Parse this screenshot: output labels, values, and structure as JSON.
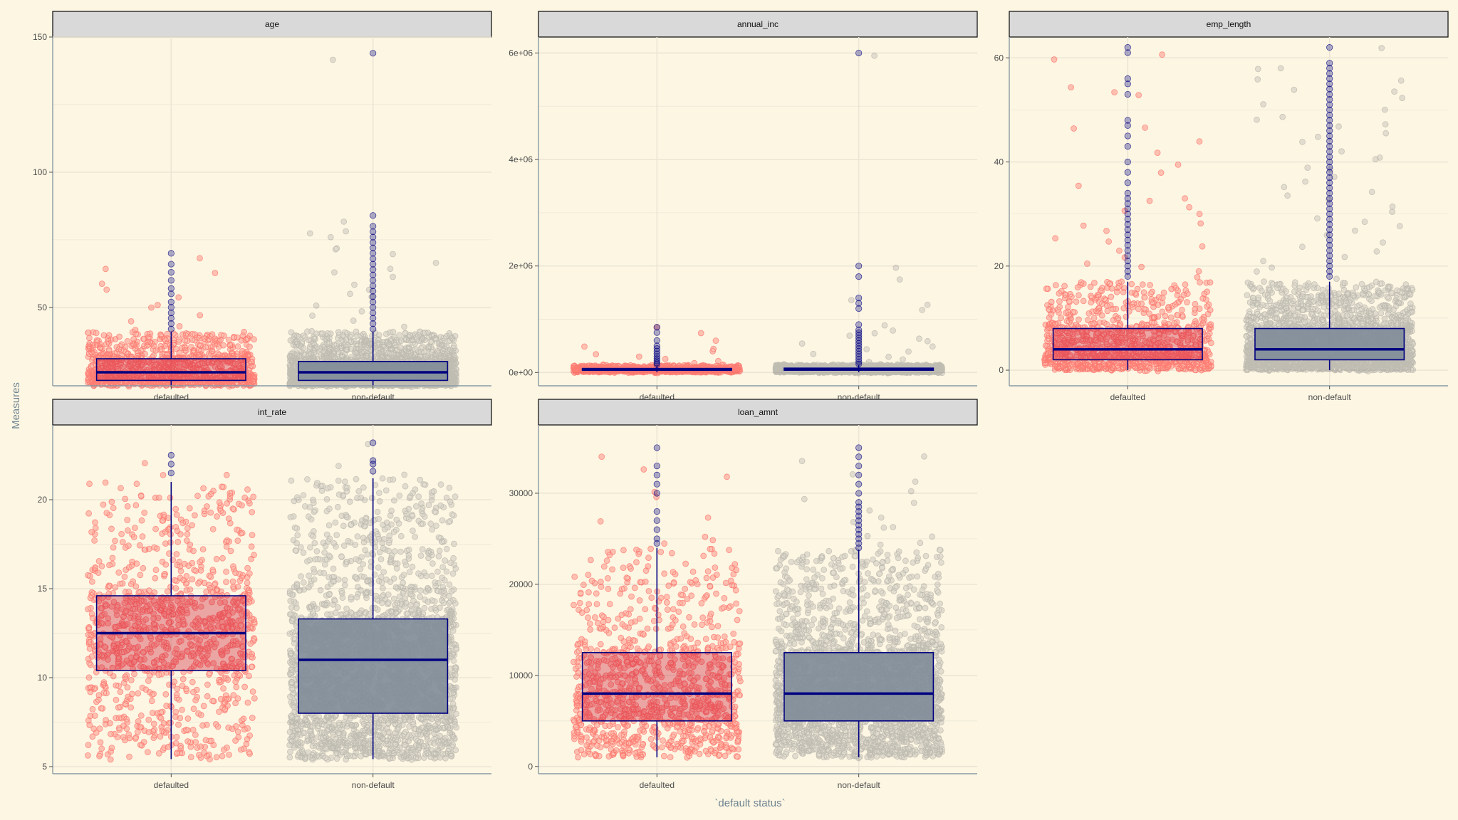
{
  "chart_data": {
    "type": "boxplot",
    "xlabel": "`default status`",
    "ylabel": "Measures",
    "categories": [
      "defaulted",
      "non-default"
    ],
    "colors": {
      "background": "#fdf6e3",
      "strip_fill": "#d9d9d9",
      "grid": "#ece5d5",
      "points_defaulted": "#ff0000",
      "points_non_default": "#808080",
      "box_fill_defaulted": "#c8102e",
      "box_fill_non_default": "#7f8c99",
      "box_line": "#000080",
      "outlier": "#000080",
      "axis_title": "#6e8491"
    },
    "facets": [
      {
        "name": "age",
        "ylim": [
          21,
          150
        ],
        "y_ticks": [
          50,
          100,
          150
        ],
        "y_tick_labels": [
          "50",
          "100",
          "150"
        ],
        "boxes": [
          {
            "group": "defaulted",
            "lower_whisker": 21,
            "q1": 23,
            "median": 26,
            "q3": 31,
            "upper_whisker": 41,
            "outliers": [
              42,
              44,
              46,
              48,
              50,
              52,
              55,
              57,
              60,
              63,
              66,
              70
            ]
          },
          {
            "group": "non-default",
            "lower_whisker": 21,
            "q1": 23,
            "median": 26,
            "q3": 30,
            "upper_whisker": 41,
            "outliers": [
              42,
              44,
              46,
              48,
              50,
              52,
              54,
              56,
              58,
              60,
              62,
              64,
              66,
              68,
              70,
              72,
              74,
              76,
              78,
              80,
              84,
              144
            ]
          }
        ]
      },
      {
        "name": "annual_inc",
        "ylim": [
          -250000,
          6300000
        ],
        "y_ticks": [
          0,
          2000000,
          4000000,
          6000000
        ],
        "y_tick_labels": [
          "0e+00",
          "2e+06",
          "4e+06",
          "6e+06"
        ],
        "boxes": [
          {
            "group": "defaulted",
            "lower_whisker": 4000,
            "q1": 40000,
            "median": 55000,
            "q3": 76000,
            "upper_whisker": 130000,
            "outliers": [
              150000,
              180000,
              220000,
              260000,
              300000,
              350000,
              400000,
              450000,
              500000,
              600000,
              750000,
              850000
            ]
          },
          {
            "group": "non-default",
            "lower_whisker": 4000,
            "q1": 42000,
            "median": 60000,
            "q3": 82000,
            "upper_whisker": 140000,
            "outliers": [
              160000,
              200000,
              250000,
              300000,
              350000,
              400000,
              450000,
              500000,
              550000,
              600000,
              650000,
              700000,
              750000,
              800000,
              900000,
              1200000,
              1300000,
              1400000,
              1800000,
              2000000,
              6000000
            ]
          }
        ]
      },
      {
        "name": "emp_length",
        "ylim": [
          -3,
          64
        ],
        "y_ticks": [
          0,
          20,
          40,
          60
        ],
        "y_tick_labels": [
          "0",
          "20",
          "40",
          "60"
        ],
        "boxes": [
          {
            "group": "defaulted",
            "lower_whisker": 0,
            "q1": 2,
            "median": 4,
            "q3": 8,
            "upper_whisker": 17,
            "outliers": [
              18,
              19,
              20,
              21,
              22,
              23,
              24,
              25,
              26,
              27,
              28,
              29,
              30,
              31,
              32,
              33,
              34,
              36,
              38,
              40,
              43,
              45,
              47,
              48,
              53,
              55,
              56,
              61,
              62
            ]
          },
          {
            "group": "non-default",
            "lower_whisker": 0,
            "q1": 2,
            "median": 4,
            "q3": 8,
            "upper_whisker": 17,
            "outliers": [
              18,
              19,
              20,
              21,
              22,
              23,
              24,
              25,
              26,
              27,
              28,
              29,
              30,
              31,
              32,
              33,
              34,
              35,
              36,
              37,
              38,
              39,
              40,
              41,
              42,
              43,
              44,
              45,
              46,
              47,
              48,
              49,
              50,
              51,
              52,
              53,
              54,
              55,
              56,
              57,
              58,
              59,
              62
            ]
          }
        ]
      },
      {
        "name": "int_rate",
        "ylim": [
          4.6,
          24.2
        ],
        "y_ticks": [
          5,
          10,
          15,
          20
        ],
        "y_tick_labels": [
          "5",
          "10",
          "15",
          "20"
        ],
        "boxes": [
          {
            "group": "defaulted",
            "lower_whisker": 5.42,
            "q1": 10.4,
            "median": 12.5,
            "q3": 14.6,
            "upper_whisker": 21.0,
            "outliers": [
              21.5,
              22.0,
              22.5
            ]
          },
          {
            "group": "non-default",
            "lower_whisker": 5.42,
            "q1": 8.0,
            "median": 11.0,
            "q3": 13.3,
            "upper_whisker": 21.2,
            "outliers": [
              21.6,
              22.0,
              22.2,
              23.2
            ]
          }
        ]
      },
      {
        "name": "loan_amnt",
        "ylim": [
          -800,
          37500
        ],
        "y_ticks": [
          0,
          10000,
          20000,
          30000
        ],
        "y_tick_labels": [
          "0",
          "10000",
          "20000",
          "30000"
        ],
        "boxes": [
          {
            "group": "defaulted",
            "lower_whisker": 1000,
            "q1": 5000,
            "median": 8000,
            "q3": 12500,
            "upper_whisker": 24000,
            "outliers": [
              24500,
              25000,
              26000,
              27000,
              28000,
              30000,
              31000,
              32000,
              33000,
              35000
            ]
          },
          {
            "group": "non-default",
            "lower_whisker": 1000,
            "q1": 5000,
            "median": 8000,
            "q3": 12500,
            "upper_whisker": 23800,
            "outliers": [
              24000,
              24500,
              25000,
              25500,
              26000,
              26500,
              27000,
              27500,
              28000,
              28500,
              29000,
              30000,
              31000,
              32000,
              33000,
              34000,
              35000
            ]
          }
        ]
      }
    ]
  }
}
